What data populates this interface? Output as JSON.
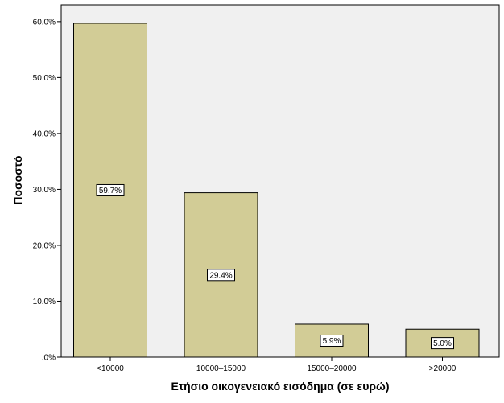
{
  "chart_data": {
    "type": "bar",
    "title": "",
    "xlabel": "Ετήσιο οικογενειακό εισόδημα (σε ευρώ)",
    "ylabel": "Ποσοστό",
    "categories": [
      "<10000",
      "10000–15000",
      "15000–20000",
      ">20000"
    ],
    "values": [
      59.7,
      29.4,
      5.9,
      5.0
    ],
    "data_labels": [
      "59.7%",
      "29.4%",
      "5.9%",
      "5.0%"
    ],
    "ylim": [
      0,
      63
    ],
    "yticks": [
      0,
      10,
      20,
      30,
      40,
      50,
      60
    ],
    "ytick_labels": [
      ".0%",
      "10.0%",
      "20.0%",
      "30.0%",
      "40.0%",
      "50.0%",
      "60.0%"
    ],
    "grid": false,
    "legend": "none",
    "colors": {
      "bar_fill": "#D2CC96",
      "bar_stroke": "#000000",
      "plot_background": "#F0F0F0",
      "page_background": "#FFFFFF"
    }
  }
}
